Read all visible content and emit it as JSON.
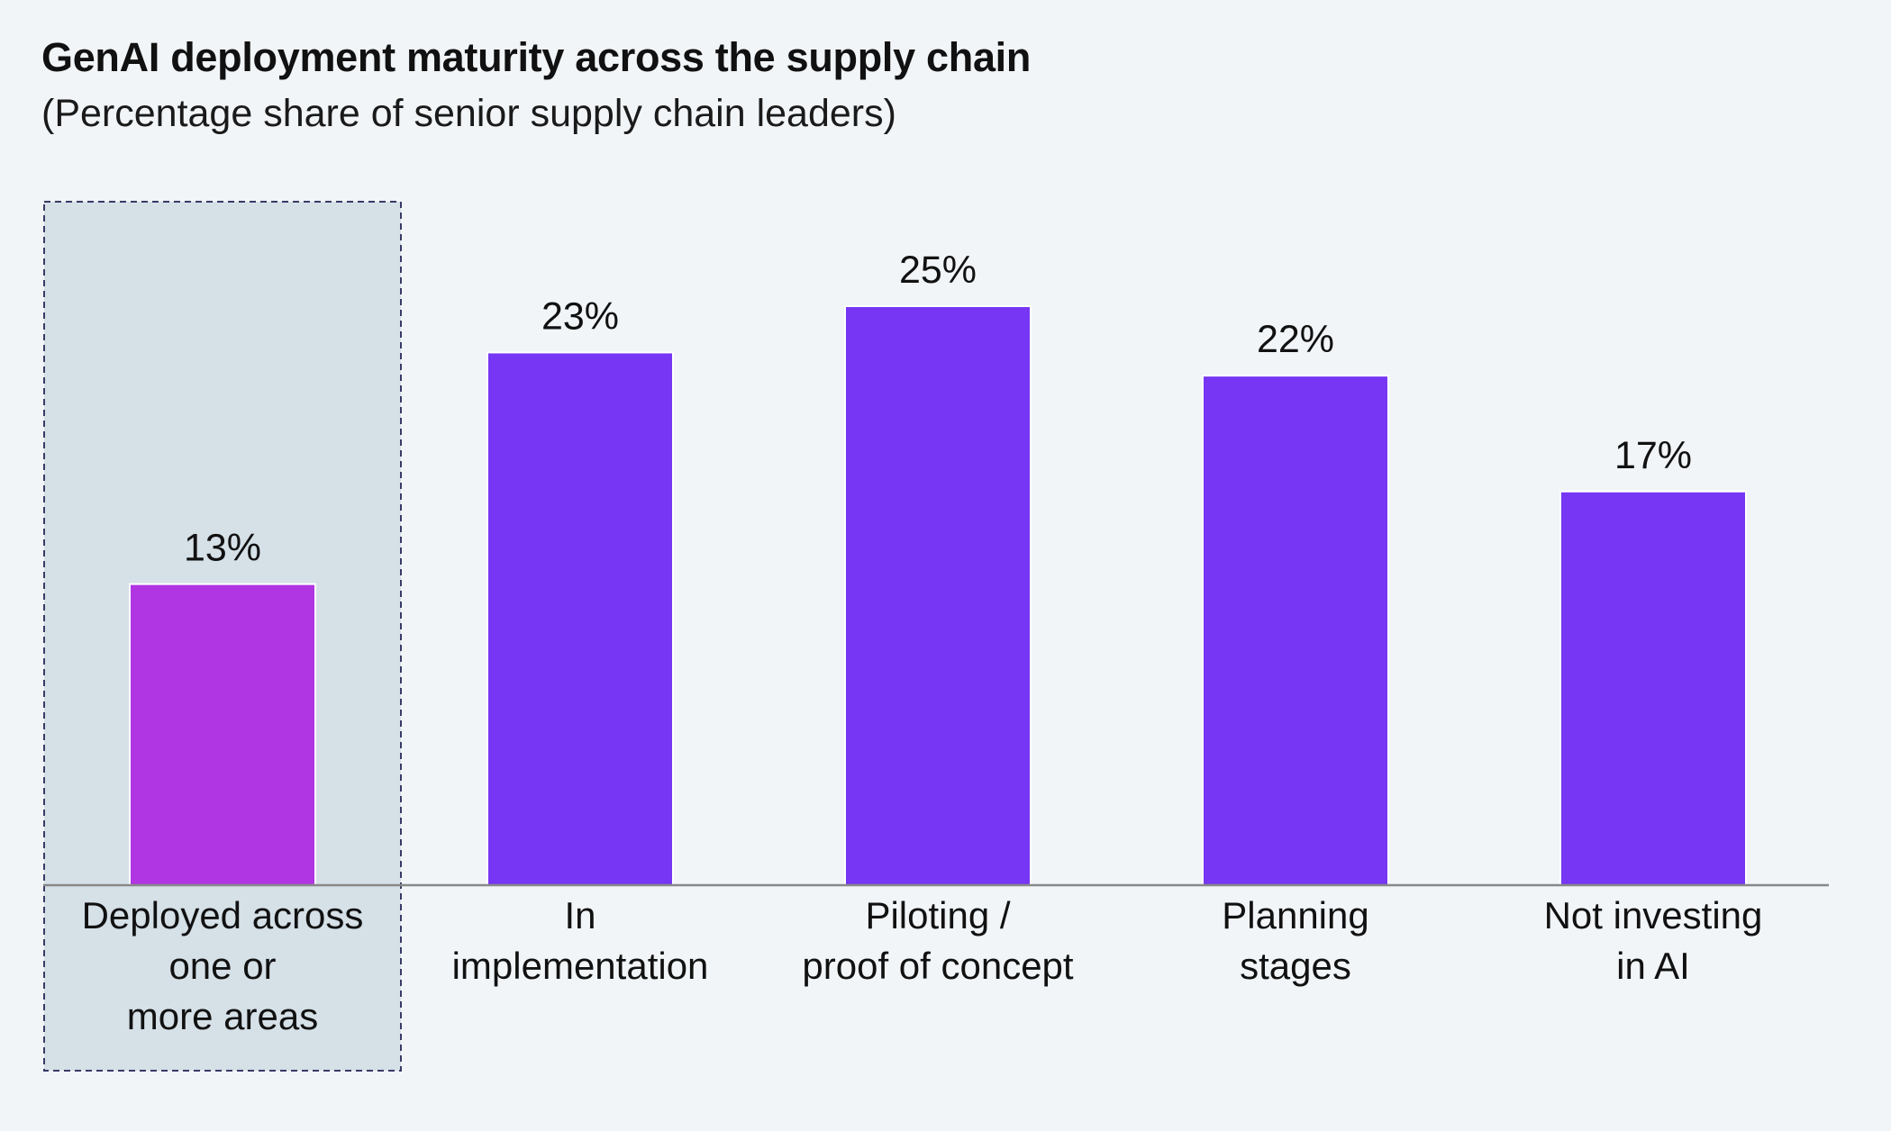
{
  "title": "GenAI deployment maturity across the supply chain",
  "subtitle": "(Percentage share of senior supply chain leaders)",
  "colors": {
    "background": "#f1f5f8",
    "highlight_panel": "#d5e0e7",
    "highlight_bar": "#b035e3",
    "bar": "#7636f3",
    "axis": "#888888"
  },
  "chart_data": {
    "type": "bar",
    "title": "GenAI deployment maturity across the supply chain",
    "subtitle": "(Percentage share of senior supply chain leaders)",
    "categories": [
      [
        "Deployed across",
        "one or",
        "more areas"
      ],
      [
        "In",
        "implementation"
      ],
      [
        "Piloting /",
        "proof of concept"
      ],
      [
        "Planning",
        "stages"
      ],
      [
        "Not investing",
        "in AI"
      ]
    ],
    "values": [
      13,
      23,
      25,
      22,
      17
    ],
    "value_labels": [
      "13%",
      "23%",
      "25%",
      "22%",
      "17%"
    ],
    "unit": "%",
    "highlighted_index": 0,
    "ylim": [
      0,
      25
    ],
    "grid": false,
    "legend": "none"
  }
}
